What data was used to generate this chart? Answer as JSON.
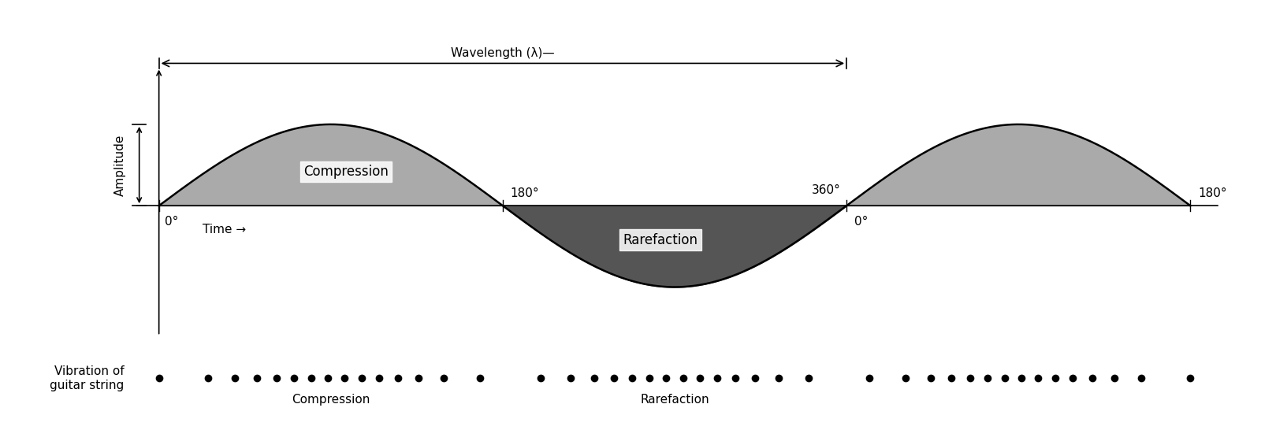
{
  "bg_color": "#ffffff",
  "compression_fill": "#aaaaaa",
  "rarefaction_fill": "#555555",
  "wave_lw": 1.8,
  "amplitude_label": "Amplitude",
  "time_label": "Time →",
  "wavelength_label": "Wavelength (λ)—",
  "compression_label": "Compression",
  "rarefaction_label": "Rarefaction",
  "vibration_label": "Vibration of\nguitar string",
  "compression_dot_label": "Compression",
  "rarefaction_dot_label": "Rarefaction",
  "angle_0a": "0°",
  "angle_180a": "180°",
  "angle_360": "360°",
  "angle_0b": "0°",
  "angle_180b": "180°",
  "font_size": 11,
  "label_fontsize": 12
}
